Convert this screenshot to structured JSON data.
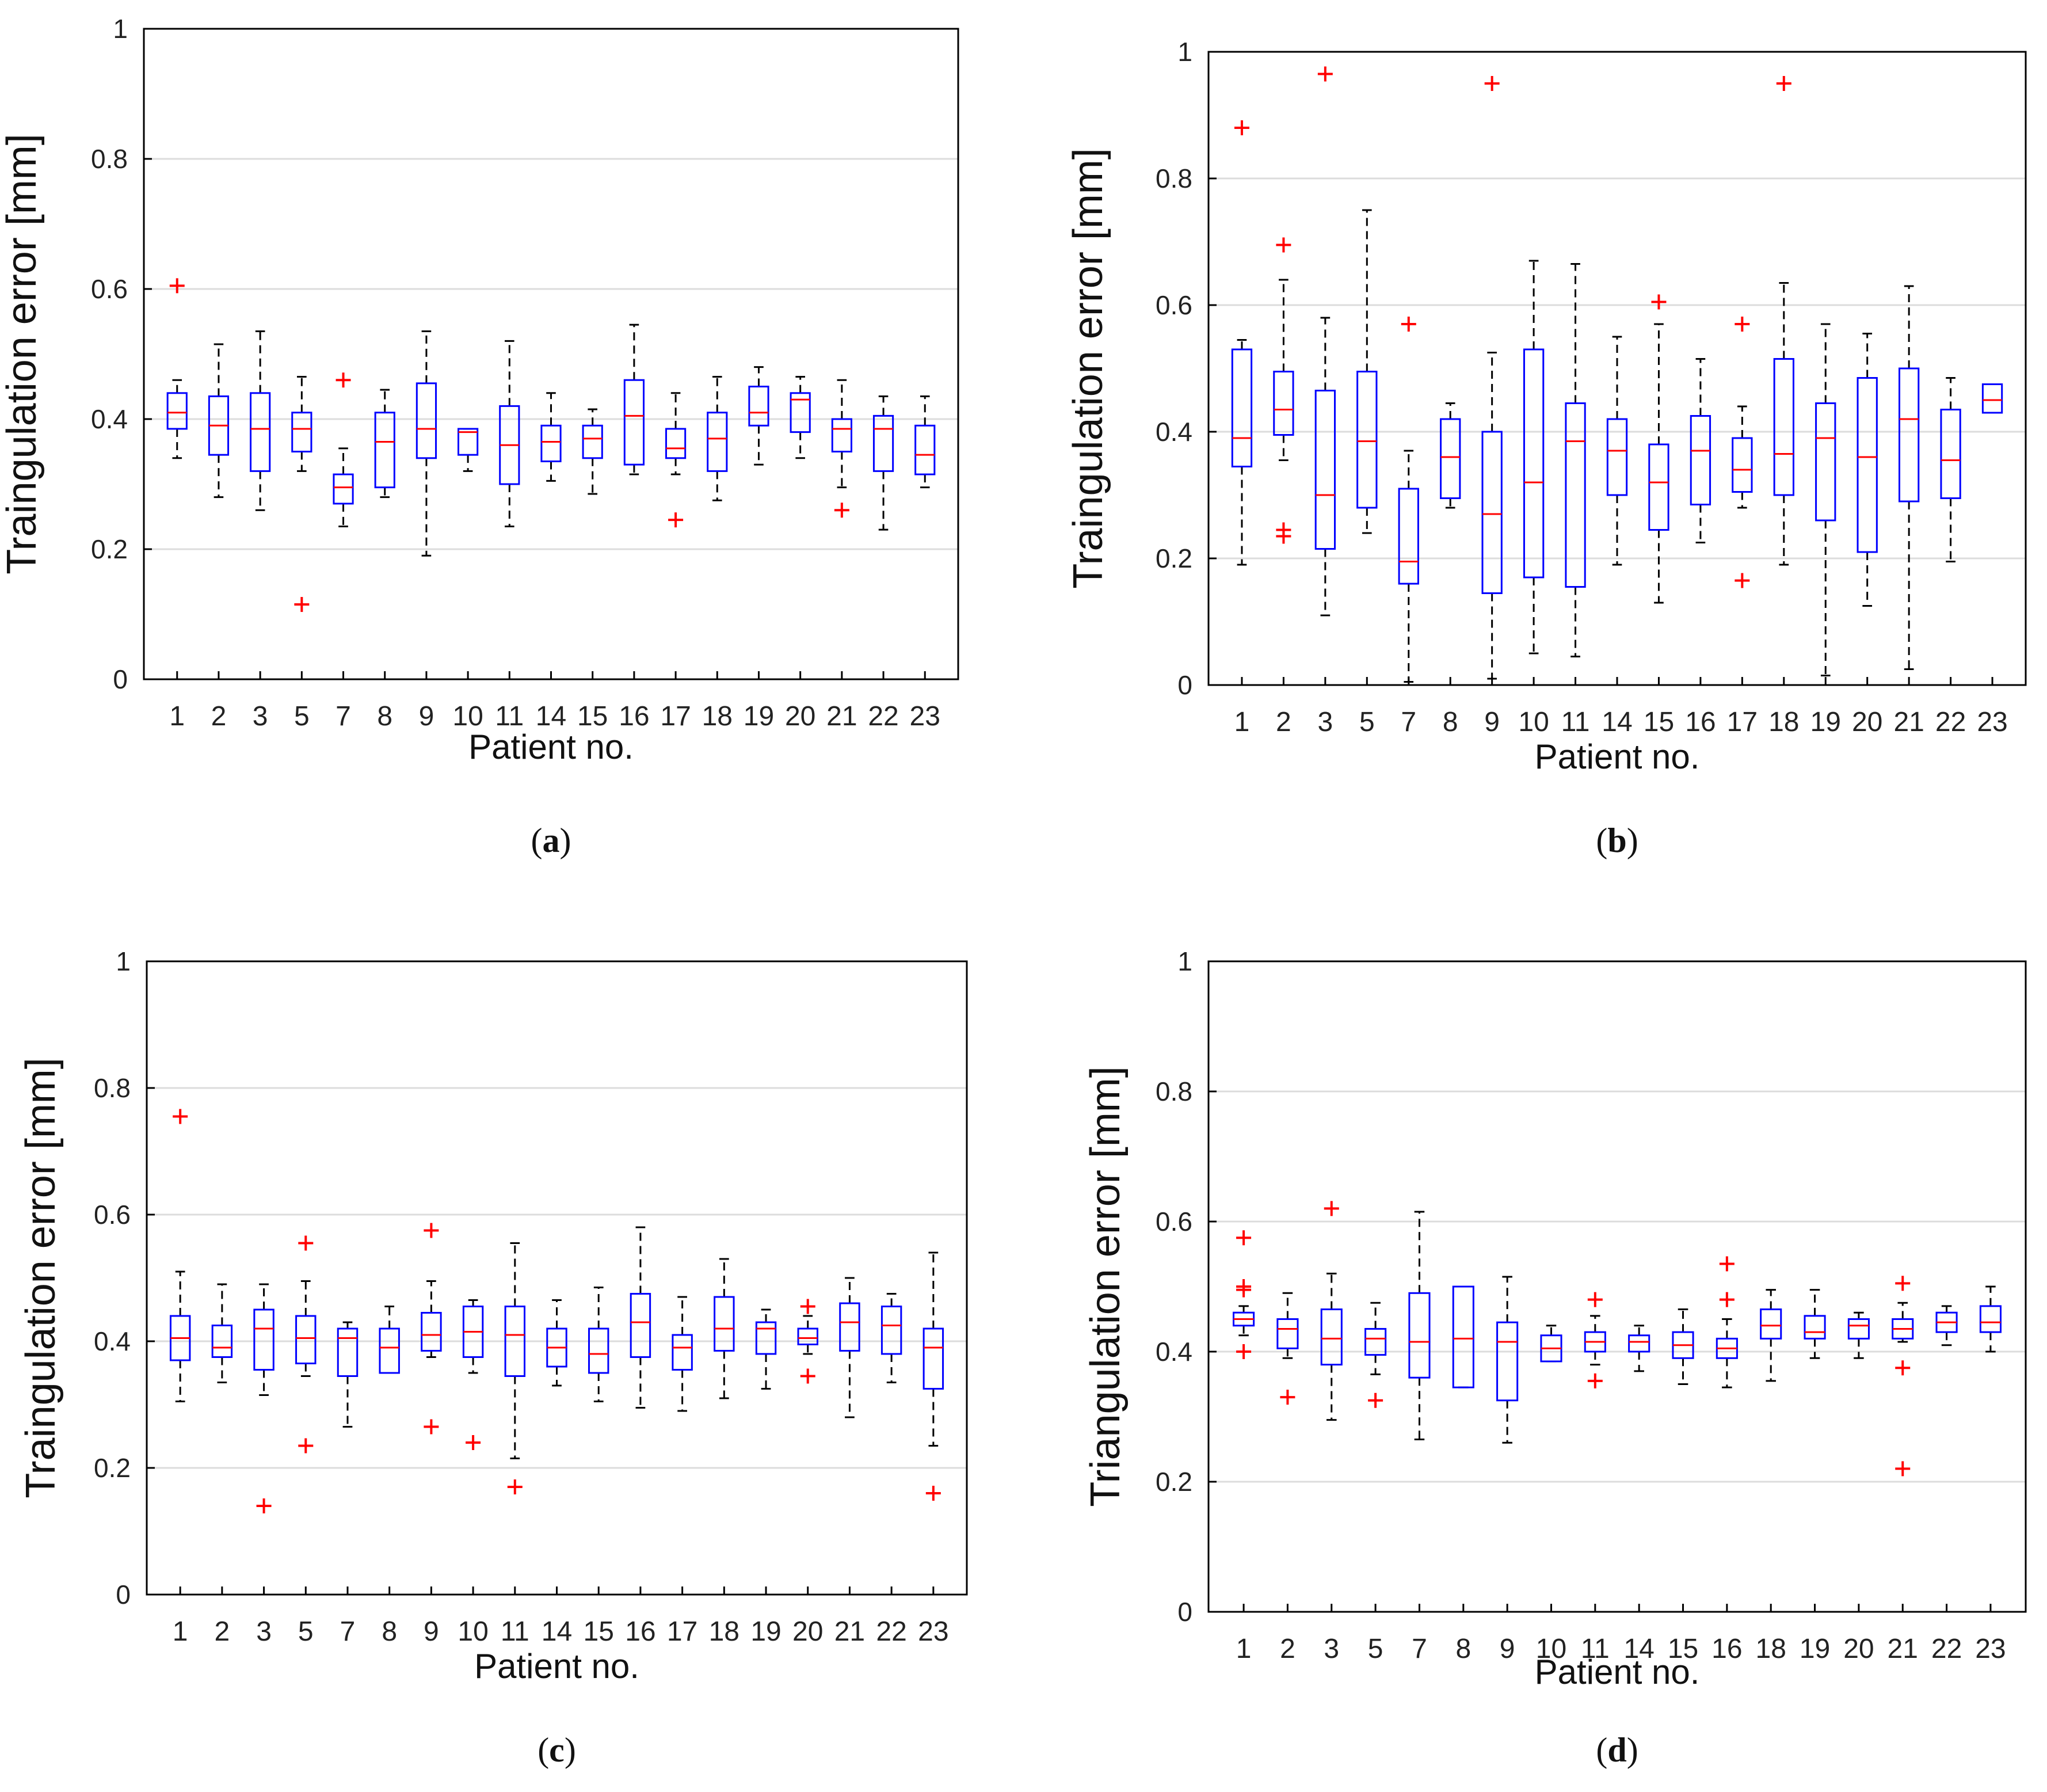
{
  "figure": {
    "panel_letters": [
      "a",
      "b",
      "c",
      "d"
    ]
  },
  "chart_data": [
    {
      "type": "boxplot",
      "panel": "a",
      "ylabel": "Traingulation error [mm]",
      "xlabel": "Patient no.",
      "ylim": [
        0,
        1
      ],
      "yticks": [
        0,
        0.2,
        0.4,
        0.6,
        0.8,
        1
      ],
      "ytick_labels": [
        "0",
        "0.2",
        "0.4",
        "0.6",
        "0.8",
        "1"
      ],
      "grid": "horizontal",
      "categories": [
        "1",
        "2",
        "3",
        "5",
        "7",
        "8",
        "9",
        "10",
        "11",
        "14",
        "15",
        "16",
        "17",
        "18",
        "19",
        "20",
        "21",
        "22",
        "23"
      ],
      "boxes": [
        {
          "whislo": 0.34,
          "q1": 0.385,
          "med": 0.41,
          "q3": 0.44,
          "whishi": 0.46,
          "fliers": [
            0.605
          ]
        },
        {
          "whislo": 0.28,
          "q1": 0.345,
          "med": 0.39,
          "q3": 0.435,
          "whishi": 0.515,
          "fliers": []
        },
        {
          "whislo": 0.26,
          "q1": 0.32,
          "med": 0.385,
          "q3": 0.44,
          "whishi": 0.535,
          "fliers": []
        },
        {
          "whislo": 0.32,
          "q1": 0.35,
          "med": 0.385,
          "q3": 0.41,
          "whishi": 0.465,
          "fliers": [
            0.115
          ]
        },
        {
          "whislo": 0.235,
          "q1": 0.27,
          "med": 0.295,
          "q3": 0.315,
          "whishi": 0.355,
          "fliers": [
            0.46
          ]
        },
        {
          "whislo": 0.28,
          "q1": 0.295,
          "med": 0.365,
          "q3": 0.41,
          "whishi": 0.445,
          "fliers": []
        },
        {
          "whislo": 0.19,
          "q1": 0.34,
          "med": 0.385,
          "q3": 0.455,
          "whishi": 0.535,
          "fliers": []
        },
        {
          "whislo": 0.32,
          "q1": 0.345,
          "med": 0.38,
          "q3": 0.385,
          "whishi": 0.385,
          "fliers": []
        },
        {
          "whislo": 0.235,
          "q1": 0.3,
          "med": 0.36,
          "q3": 0.42,
          "whishi": 0.52,
          "fliers": []
        },
        {
          "whislo": 0.305,
          "q1": 0.335,
          "med": 0.365,
          "q3": 0.39,
          "whishi": 0.44,
          "fliers": []
        },
        {
          "whislo": 0.285,
          "q1": 0.34,
          "med": 0.37,
          "q3": 0.39,
          "whishi": 0.415,
          "fliers": []
        },
        {
          "whislo": 0.315,
          "q1": 0.33,
          "med": 0.405,
          "q3": 0.46,
          "whishi": 0.545,
          "fliers": []
        },
        {
          "whislo": 0.315,
          "q1": 0.34,
          "med": 0.355,
          "q3": 0.385,
          "whishi": 0.44,
          "fliers": [
            0.245
          ]
        },
        {
          "whislo": 0.275,
          "q1": 0.32,
          "med": 0.37,
          "q3": 0.41,
          "whishi": 0.465,
          "fliers": []
        },
        {
          "whislo": 0.33,
          "q1": 0.39,
          "med": 0.41,
          "q3": 0.45,
          "whishi": 0.48,
          "fliers": []
        },
        {
          "whislo": 0.34,
          "q1": 0.38,
          "med": 0.43,
          "q3": 0.44,
          "whishi": 0.465,
          "fliers": []
        },
        {
          "whislo": 0.295,
          "q1": 0.35,
          "med": 0.385,
          "q3": 0.4,
          "whishi": 0.46,
          "fliers": [
            0.26
          ]
        },
        {
          "whislo": 0.23,
          "q1": 0.32,
          "med": 0.385,
          "q3": 0.405,
          "whishi": 0.435,
          "fliers": []
        },
        {
          "whislo": 0.295,
          "q1": 0.315,
          "med": 0.345,
          "q3": 0.39,
          "whishi": 0.435,
          "fliers": []
        }
      ]
    },
    {
      "type": "boxplot",
      "panel": "b",
      "ylabel": "Traingulation error [mm]",
      "xlabel": "Patient no.",
      "ylim": [
        0,
        1
      ],
      "yticks": [
        0,
        0.2,
        0.4,
        0.6,
        0.8,
        1
      ],
      "ytick_labels": [
        "0",
        "0.2",
        "0.4",
        "0.6",
        "0.8",
        "1"
      ],
      "grid": "horizontal",
      "categories": [
        "1",
        "2",
        "3",
        "5",
        "7",
        "8",
        "9",
        "10",
        "11",
        "14",
        "15",
        "16",
        "17",
        "18",
        "19",
        "20",
        "21",
        "22",
        "23"
      ],
      "boxes": [
        {
          "whislo": 0.19,
          "q1": 0.345,
          "med": 0.39,
          "q3": 0.53,
          "whishi": 0.545,
          "fliers": [
            0.88
          ]
        },
        {
          "whislo": 0.355,
          "q1": 0.395,
          "med": 0.435,
          "q3": 0.495,
          "whishi": 0.64,
          "fliers": [
            0.695,
            0.245,
            0.235
          ]
        },
        {
          "whislo": 0.11,
          "q1": 0.215,
          "med": 0.3,
          "q3": 0.465,
          "whishi": 0.58,
          "fliers": [
            0.965
          ]
        },
        {
          "whislo": 0.24,
          "q1": 0.28,
          "med": 0.385,
          "q3": 0.495,
          "whishi": 0.75,
          "fliers": []
        },
        {
          "whislo": 0.005,
          "q1": 0.16,
          "med": 0.195,
          "q3": 0.31,
          "whishi": 0.37,
          "fliers": [
            0.57
          ]
        },
        {
          "whislo": 0.28,
          "q1": 0.295,
          "med": 0.36,
          "q3": 0.42,
          "whishi": 0.445,
          "fliers": []
        },
        {
          "whislo": 0.01,
          "q1": 0.145,
          "med": 0.27,
          "q3": 0.4,
          "whishi": 0.525,
          "fliers": [
            0.95
          ]
        },
        {
          "whislo": 0.05,
          "q1": 0.17,
          "med": 0.32,
          "q3": 0.53,
          "whishi": 0.67,
          "fliers": []
        },
        {
          "whislo": 0.045,
          "q1": 0.155,
          "med": 0.385,
          "q3": 0.445,
          "whishi": 0.665,
          "fliers": []
        },
        {
          "whislo": 0.19,
          "q1": 0.3,
          "med": 0.37,
          "q3": 0.42,
          "whishi": 0.55,
          "fliers": []
        },
        {
          "whislo": 0.13,
          "q1": 0.245,
          "med": 0.32,
          "q3": 0.38,
          "whishi": 0.57,
          "fliers": [
            0.605
          ]
        },
        {
          "whislo": 0.225,
          "q1": 0.285,
          "med": 0.37,
          "q3": 0.425,
          "whishi": 0.515,
          "fliers": []
        },
        {
          "whislo": 0.28,
          "q1": 0.305,
          "med": 0.34,
          "q3": 0.39,
          "whishi": 0.44,
          "fliers": [
            0.57,
            0.165
          ]
        },
        {
          "whislo": 0.19,
          "q1": 0.3,
          "med": 0.365,
          "q3": 0.515,
          "whishi": 0.635,
          "fliers": [
            0.95
          ]
        },
        {
          "whislo": 0.015,
          "q1": 0.26,
          "med": 0.39,
          "q3": 0.445,
          "whishi": 0.57,
          "fliers": []
        },
        {
          "whislo": 0.125,
          "q1": 0.21,
          "med": 0.36,
          "q3": 0.485,
          "whishi": 0.555,
          "fliers": []
        },
        {
          "whislo": 0.025,
          "q1": 0.29,
          "med": 0.42,
          "q3": 0.5,
          "whishi": 0.63,
          "fliers": []
        },
        {
          "whislo": 0.195,
          "q1": 0.295,
          "med": 0.355,
          "q3": 0.435,
          "whishi": 0.485,
          "fliers": []
        },
        {
          "whislo": 0.43,
          "q1": 0.43,
          "med": 0.45,
          "q3": 0.475,
          "whishi": 0.475,
          "fliers": []
        }
      ]
    },
    {
      "type": "boxplot",
      "panel": "c",
      "ylabel": "Traingulation error [mm]",
      "xlabel": "Patient no.",
      "ylim": [
        0,
        1
      ],
      "yticks": [
        0,
        0.2,
        0.4,
        0.6,
        0.8,
        1
      ],
      "ytick_labels": [
        "0",
        "0.2",
        "0.4",
        "0.6",
        "0.8",
        "1"
      ],
      "grid": "horizontal",
      "categories": [
        "1",
        "2",
        "3",
        "5",
        "7",
        "8",
        "9",
        "10",
        "11",
        "14",
        "15",
        "16",
        "17",
        "18",
        "19",
        "20",
        "21",
        "22",
        "23"
      ],
      "boxes": [
        {
          "whislo": 0.305,
          "q1": 0.37,
          "med": 0.405,
          "q3": 0.44,
          "whishi": 0.51,
          "fliers": [
            0.755
          ]
        },
        {
          "whislo": 0.335,
          "q1": 0.375,
          "med": 0.39,
          "q3": 0.425,
          "whishi": 0.49,
          "fliers": []
        },
        {
          "whislo": 0.315,
          "q1": 0.355,
          "med": 0.42,
          "q3": 0.45,
          "whishi": 0.49,
          "fliers": [
            0.14
          ]
        },
        {
          "whislo": 0.345,
          "q1": 0.365,
          "med": 0.405,
          "q3": 0.44,
          "whishi": 0.495,
          "fliers": [
            0.555,
            0.235
          ]
        },
        {
          "whislo": 0.265,
          "q1": 0.345,
          "med": 0.405,
          "q3": 0.42,
          "whishi": 0.43,
          "fliers": []
        },
        {
          "whislo": 0.35,
          "q1": 0.35,
          "med": 0.39,
          "q3": 0.42,
          "whishi": 0.455,
          "fliers": []
        },
        {
          "whislo": 0.375,
          "q1": 0.385,
          "med": 0.41,
          "q3": 0.445,
          "whishi": 0.495,
          "fliers": [
            0.575,
            0.265
          ]
        },
        {
          "whislo": 0.35,
          "q1": 0.375,
          "med": 0.415,
          "q3": 0.455,
          "whishi": 0.465,
          "fliers": [
            0.24
          ]
        },
        {
          "whislo": 0.215,
          "q1": 0.345,
          "med": 0.41,
          "q3": 0.455,
          "whishi": 0.555,
          "fliers": [
            0.17
          ]
        },
        {
          "whislo": 0.33,
          "q1": 0.36,
          "med": 0.39,
          "q3": 0.42,
          "whishi": 0.465,
          "fliers": []
        },
        {
          "whislo": 0.305,
          "q1": 0.35,
          "med": 0.38,
          "q3": 0.42,
          "whishi": 0.485,
          "fliers": []
        },
        {
          "whislo": 0.295,
          "q1": 0.375,
          "med": 0.43,
          "q3": 0.475,
          "whishi": 0.58,
          "fliers": []
        },
        {
          "whislo": 0.29,
          "q1": 0.355,
          "med": 0.39,
          "q3": 0.41,
          "whishi": 0.47,
          "fliers": []
        },
        {
          "whislo": 0.31,
          "q1": 0.385,
          "med": 0.42,
          "q3": 0.47,
          "whishi": 0.53,
          "fliers": []
        },
        {
          "whislo": 0.325,
          "q1": 0.38,
          "med": 0.42,
          "q3": 0.43,
          "whishi": 0.45,
          "fliers": []
        },
        {
          "whislo": 0.38,
          "q1": 0.395,
          "med": 0.405,
          "q3": 0.42,
          "whishi": 0.44,
          "fliers": [
            0.455,
            0.345
          ]
        },
        {
          "whislo": 0.28,
          "q1": 0.385,
          "med": 0.43,
          "q3": 0.46,
          "whishi": 0.5,
          "fliers": []
        },
        {
          "whislo": 0.335,
          "q1": 0.38,
          "med": 0.425,
          "q3": 0.455,
          "whishi": 0.475,
          "fliers": []
        },
        {
          "whislo": 0.235,
          "q1": 0.325,
          "med": 0.39,
          "q3": 0.42,
          "whishi": 0.54,
          "fliers": [
            0.16
          ]
        }
      ]
    },
    {
      "type": "boxplot",
      "panel": "d",
      "ylabel": "Triangulation error [mm]",
      "xlabel": "Patient no.",
      "ylim": [
        0,
        1
      ],
      "yticks": [
        0,
        0.2,
        0.4,
        0.6,
        0.8,
        1
      ],
      "ytick_labels": [
        "0",
        "0.2",
        "0.4",
        "0.6",
        "0.8",
        "1"
      ],
      "grid": "horizontal",
      "categories": [
        "1",
        "2",
        "3",
        "5",
        "7",
        "8",
        "9",
        "10",
        "11",
        "14",
        "15",
        "16",
        "18",
        "19",
        "20",
        "21",
        "22",
        "23"
      ],
      "boxes": [
        {
          "whislo": 0.425,
          "q1": 0.44,
          "med": 0.45,
          "q3": 0.46,
          "whishi": 0.47,
          "fliers": [
            0.575,
            0.5,
            0.495,
            0.4
          ]
        },
        {
          "whislo": 0.39,
          "q1": 0.405,
          "med": 0.435,
          "q3": 0.45,
          "whishi": 0.49,
          "fliers": [
            0.33
          ]
        },
        {
          "whislo": 0.295,
          "q1": 0.38,
          "med": 0.42,
          "q3": 0.465,
          "whishi": 0.52,
          "fliers": [
            0.62
          ]
        },
        {
          "whislo": 0.365,
          "q1": 0.395,
          "med": 0.42,
          "q3": 0.435,
          "whishi": 0.475,
          "fliers": [
            0.325
          ]
        },
        {
          "whislo": 0.265,
          "q1": 0.36,
          "med": 0.415,
          "q3": 0.49,
          "whishi": 0.615,
          "fliers": []
        },
        {
          "whislo": 0.345,
          "q1": 0.345,
          "med": 0.42,
          "q3": 0.5,
          "whishi": 0.5,
          "fliers": []
        },
        {
          "whislo": 0.26,
          "q1": 0.325,
          "med": 0.415,
          "q3": 0.445,
          "whishi": 0.515,
          "fliers": []
        },
        {
          "whislo": 0.385,
          "q1": 0.385,
          "med": 0.405,
          "q3": 0.425,
          "whishi": 0.44,
          "fliers": []
        },
        {
          "whislo": 0.38,
          "q1": 0.4,
          "med": 0.415,
          "q3": 0.43,
          "whishi": 0.455,
          "fliers": [
            0.48,
            0.355
          ]
        },
        {
          "whislo": 0.37,
          "q1": 0.4,
          "med": 0.415,
          "q3": 0.425,
          "whishi": 0.44,
          "fliers": []
        },
        {
          "whislo": 0.35,
          "q1": 0.39,
          "med": 0.41,
          "q3": 0.43,
          "whishi": 0.465,
          "fliers": []
        },
        {
          "whislo": 0.345,
          "q1": 0.39,
          "med": 0.405,
          "q3": 0.42,
          "whishi": 0.45,
          "fliers": [
            0.535,
            0.48
          ]
        },
        {
          "whislo": 0.355,
          "q1": 0.42,
          "med": 0.44,
          "q3": 0.465,
          "whishi": 0.495,
          "fliers": []
        },
        {
          "whislo": 0.39,
          "q1": 0.42,
          "med": 0.43,
          "q3": 0.455,
          "whishi": 0.495,
          "fliers": []
        },
        {
          "whislo": 0.39,
          "q1": 0.42,
          "med": 0.44,
          "q3": 0.45,
          "whishi": 0.46,
          "fliers": []
        },
        {
          "whislo": 0.415,
          "q1": 0.42,
          "med": 0.435,
          "q3": 0.45,
          "whishi": 0.475,
          "fliers": [
            0.505,
            0.375,
            0.22
          ]
        },
        {
          "whislo": 0.41,
          "q1": 0.43,
          "med": 0.445,
          "q3": 0.46,
          "whishi": 0.47,
          "fliers": []
        },
        {
          "whislo": 0.4,
          "q1": 0.43,
          "med": 0.445,
          "q3": 0.47,
          "whishi": 0.5,
          "fliers": []
        }
      ]
    }
  ]
}
